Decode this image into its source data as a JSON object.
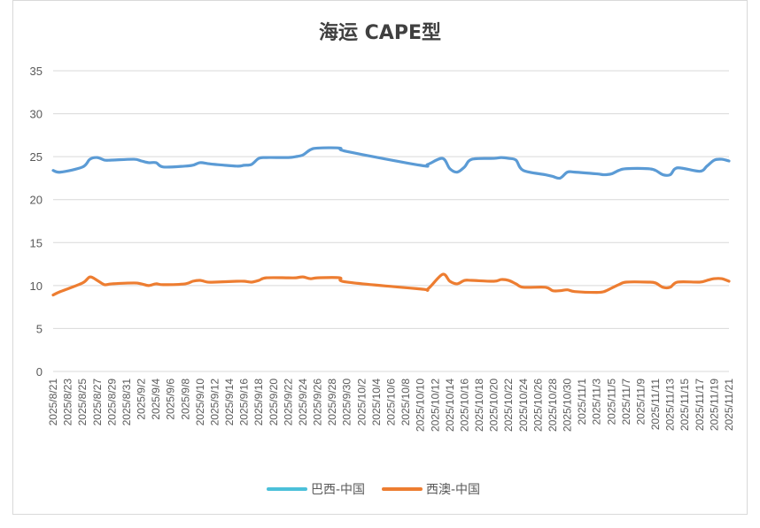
{
  "chart_data": {
    "type": "line",
    "title": "海运 CAPE型",
    "ylim": [
      0,
      35
    ],
    "yticks": [
      "0",
      "5",
      "10",
      "15",
      "20",
      "25",
      "30",
      "35"
    ],
    "grid": "horizontal",
    "legend_position": "bottom",
    "x_tick_labels": [
      "2025/8/21",
      "2025/8/23",
      "2025/8/25",
      "2025/8/27",
      "2025/8/29",
      "2025/8/31",
      "2025/9/2",
      "2025/9/4",
      "2025/9/6",
      "2025/9/8",
      "2025/9/10",
      "2025/9/12",
      "2025/9/14",
      "2025/9/16",
      "2025/9/18",
      "2025/9/20",
      "2025/9/22",
      "2025/9/24",
      "2025/9/26",
      "2025/9/28",
      "2025/9/30",
      "2025/10/2",
      "2025/10/4",
      "2025/10/6",
      "2025/10/8",
      "2025/10/10",
      "2025/10/12",
      "2025/10/14",
      "2025/10/16",
      "2025/10/18",
      "2025/10/20",
      "2025/10/22",
      "2025/10/24",
      "2025/10/26",
      "2025/10/28",
      "2025/10/30",
      "2025/11/1",
      "2025/11/3",
      "2025/11/5",
      "2025/11/7",
      "2025/11/9",
      "2025/11/11",
      "2025/11/13",
      "2025/11/15",
      "2025/11/17",
      "2025/11/19",
      "2025/11/21"
    ],
    "x": [
      "2025/8/21",
      "2025/8/22",
      "2025/8/25",
      "2025/8/26",
      "2025/8/27",
      "2025/8/28",
      "2025/8/29",
      "2025/9/1",
      "2025/9/2",
      "2025/9/3",
      "2025/9/4",
      "2025/9/5",
      "2025/9/8",
      "2025/9/9",
      "2025/9/10",
      "2025/9/11",
      "2025/9/12",
      "2025/9/15",
      "2025/9/16",
      "2025/9/17",
      "2025/9/18",
      "2025/9/19",
      "2025/9/22",
      "2025/9/23",
      "2025/9/24",
      "2025/9/25",
      "2025/9/26",
      "2025/9/29",
      "2025/9/30",
      "2025/10/10",
      "2025/10/11",
      "2025/10/13",
      "2025/10/14",
      "2025/10/15",
      "2025/10/16",
      "2025/10/17",
      "2025/10/20",
      "2025/10/21",
      "2025/10/22",
      "2025/10/23",
      "2025/10/24",
      "2025/10/27",
      "2025/10/28",
      "2025/10/29",
      "2025/10/30",
      "2025/10/31",
      "2025/11/3",
      "2025/11/4",
      "2025/11/5",
      "2025/11/6",
      "2025/11/7",
      "2025/11/10",
      "2025/11/11",
      "2025/11/12",
      "2025/11/13",
      "2025/11/14",
      "2025/11/17",
      "2025/11/18",
      "2025/11/19",
      "2025/11/20",
      "2025/11/21"
    ],
    "series": [
      {
        "name": "巴西-中国",
        "color": "#5b9bd5",
        "legend_color": "#4bc0d9",
        "values": [
          23.4,
          23.2,
          23.8,
          24.7,
          24.9,
          24.6,
          24.6,
          24.7,
          24.5,
          24.3,
          24.3,
          23.8,
          23.9,
          24.0,
          24.3,
          24.2,
          24.1,
          23.9,
          24.0,
          24.1,
          24.8,
          24.9,
          24.9,
          25.0,
          25.2,
          25.8,
          26.0,
          26.0,
          25.6,
          24.0,
          24.1,
          24.8,
          23.6,
          23.2,
          23.8,
          24.7,
          24.8,
          24.9,
          24.8,
          24.6,
          23.4,
          22.9,
          22.7,
          22.5,
          23.2,
          23.2,
          23.0,
          22.9,
          23.0,
          23.4,
          23.6,
          23.6,
          23.4,
          22.9,
          22.9,
          23.7,
          23.3,
          23.9,
          24.6,
          24.7,
          24.5
        ]
      },
      {
        "name": "西澳-中国",
        "color": "#ed7d31",
        "legend_color": "#ed7d31",
        "values": [
          8.9,
          9.3,
          10.3,
          11.0,
          10.6,
          10.1,
          10.2,
          10.3,
          10.2,
          10.0,
          10.2,
          10.1,
          10.2,
          10.5,
          10.6,
          10.4,
          10.4,
          10.5,
          10.5,
          10.4,
          10.6,
          10.9,
          10.9,
          10.9,
          11.0,
          10.8,
          10.9,
          10.9,
          10.4,
          9.6,
          9.6,
          11.3,
          10.5,
          10.2,
          10.6,
          10.6,
          10.5,
          10.7,
          10.6,
          10.2,
          9.8,
          9.8,
          9.4,
          9.4,
          9.5,
          9.3,
          9.2,
          9.3,
          9.7,
          10.1,
          10.4,
          10.4,
          10.3,
          9.8,
          9.8,
          10.4,
          10.4,
          10.6,
          10.8,
          10.8,
          10.5
        ]
      }
    ]
  }
}
